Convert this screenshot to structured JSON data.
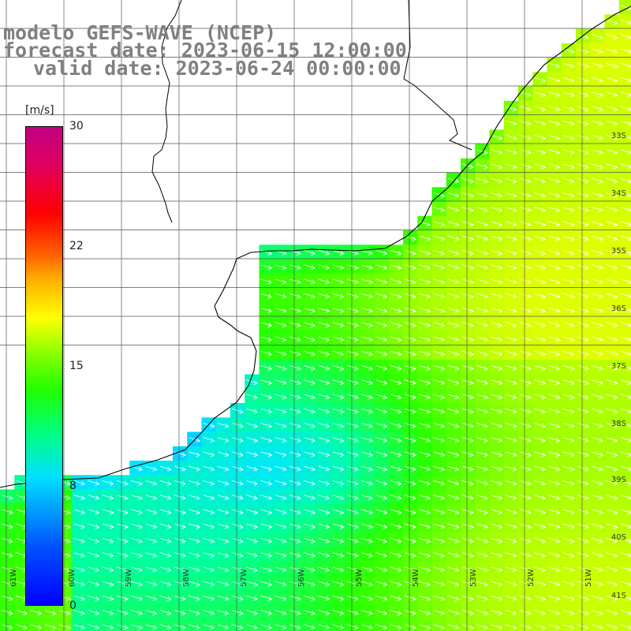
{
  "title": {
    "line1": "modelo GEFS-WAVE (NCEP)",
    "line2": "forecast date: 2023-06-15 12:00:00",
    "line3": "valid date: 2023-06-24 00:00:00"
  },
  "legend": {
    "unit": "[m/s]",
    "ticks": [
      "30",
      "22",
      "15",
      "8",
      "0"
    ],
    "range": [
      0,
      30
    ]
  },
  "axes": {
    "lat_labels": [
      "33S",
      "34S",
      "35S",
      "36S",
      "37S",
      "38S",
      "39S",
      "40S",
      "41S"
    ],
    "lon_labels": [
      "61W",
      "60W",
      "59W",
      "58W",
      "57W",
      "56W",
      "55W",
      "54W",
      "53W",
      "52W",
      "51W"
    ]
  },
  "colors": {
    "land": "#ffffff",
    "coast": "#000000",
    "grid": "#555555",
    "arrow": "#ffffff",
    "title": "#808080"
  }
}
